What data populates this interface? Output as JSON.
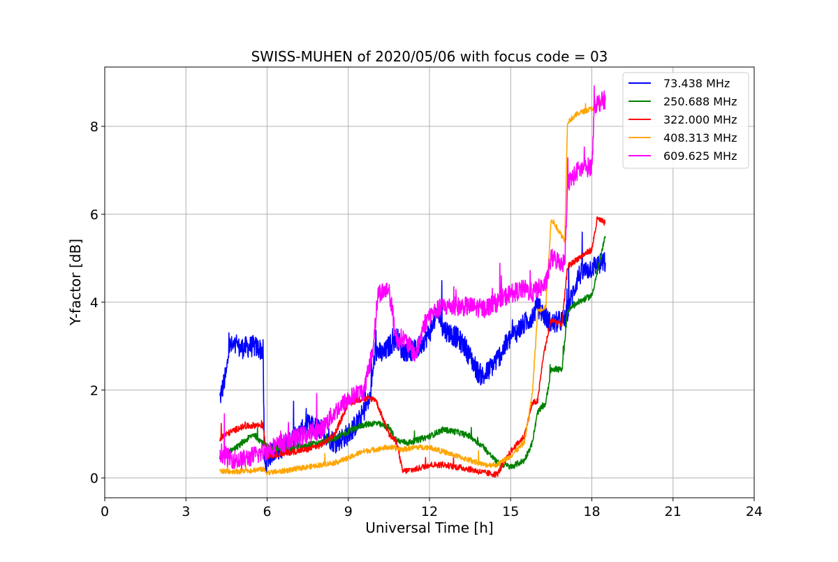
{
  "chart_data": {
    "type": "line",
    "title": "SWISS-MUHEN of 2020/05/06 with focus code = 03",
    "xlabel": "Universal Time [h]",
    "ylabel": "Y-factor [dB]",
    "xlim": [
      0,
      24
    ],
    "ylim": [
      -0.45,
      9.35
    ],
    "grid": true,
    "legend_position": "top-right",
    "x_ticks": [
      0,
      3,
      6,
      9,
      12,
      15,
      18,
      21,
      24
    ],
    "x_tick_labels": [
      "0",
      "3",
      "6",
      "9",
      "12",
      "15",
      "18",
      "21",
      "24"
    ],
    "y_ticks": [
      0,
      2,
      4,
      6,
      8
    ],
    "y_tick_labels": [
      "0",
      "2",
      "4",
      "6",
      "8"
    ],
    "series": [
      {
        "name": " 73.438 MHz",
        "color": "#0000ff",
        "noise": 0.25,
        "x": [
          4.25,
          4.5,
          4.6,
          5.0,
          5.5,
          5.85,
          5.9,
          6.2,
          6.6,
          7.0,
          7.5,
          8.0,
          8.5,
          9.0,
          9.4,
          9.8,
          10.0,
          10.3,
          10.5,
          10.8,
          11.0,
          11.5,
          12.0,
          12.3,
          12.5,
          13.0,
          13.3,
          13.8,
          14.0,
          14.5,
          15.0,
          15.5,
          15.8,
          16.0,
          16.5,
          17.0,
          17.5,
          18.0,
          18.5
        ],
        "y": [
          1.8,
          2.4,
          3.0,
          2.95,
          3.0,
          2.9,
          0.3,
          0.6,
          0.7,
          0.9,
          1.2,
          1.1,
          0.8,
          1.0,
          1.3,
          1.8,
          2.9,
          2.8,
          3.0,
          3.2,
          2.9,
          2.9,
          3.3,
          3.8,
          3.4,
          3.2,
          3.0,
          2.4,
          2.3,
          2.7,
          3.2,
          3.5,
          3.7,
          3.9,
          3.5,
          3.6,
          4.6,
          4.8,
          4.9
        ]
      },
      {
        "name": "250.688 MHz",
        "color": "#008000",
        "noise": 0.07,
        "x": [
          4.25,
          4.6,
          5.0,
          5.5,
          6.0,
          6.5,
          7.0,
          7.5,
          8.0,
          8.5,
          9.0,
          9.5,
          10.0,
          10.5,
          10.8,
          11.2,
          11.5,
          12.0,
          12.5,
          13.0,
          13.5,
          14.0,
          14.5,
          15.0,
          15.5,
          15.8,
          16.0,
          16.3,
          16.5,
          16.9,
          17.1,
          17.5,
          18.0,
          18.5
        ],
        "y": [
          0.45,
          0.6,
          0.75,
          1.0,
          0.7,
          0.65,
          0.7,
          0.75,
          0.8,
          0.9,
          1.05,
          1.2,
          1.25,
          1.15,
          0.85,
          0.8,
          0.85,
          0.95,
          1.1,
          1.05,
          0.95,
          0.7,
          0.35,
          0.25,
          0.4,
          0.8,
          1.5,
          1.7,
          2.5,
          2.45,
          3.8,
          4.0,
          4.15,
          5.5
        ]
      },
      {
        "name": "322.000 MHz",
        "color": "#ff0000",
        "noise": 0.07,
        "x": [
          4.25,
          4.5,
          5.0,
          5.5,
          5.85,
          6.0,
          6.5,
          7.0,
          7.5,
          8.0,
          8.5,
          9.0,
          9.5,
          10.0,
          10.5,
          10.8,
          11.0,
          11.5,
          12.0,
          12.5,
          13.0,
          13.5,
          14.0,
          14.5,
          15.0,
          15.5,
          15.8,
          16.0,
          16.2,
          16.5,
          16.9,
          17.1,
          17.5,
          18.0,
          18.2,
          18.5
        ],
        "y": [
          0.9,
          1.0,
          1.15,
          1.2,
          1.2,
          0.5,
          0.55,
          0.6,
          0.65,
          0.75,
          1.0,
          1.7,
          1.8,
          1.8,
          1.0,
          0.8,
          0.15,
          0.2,
          0.3,
          0.3,
          0.25,
          0.2,
          0.12,
          0.08,
          0.6,
          0.95,
          1.7,
          1.75,
          2.75,
          3.6,
          3.5,
          4.8,
          5.0,
          5.2,
          5.9,
          5.8
        ]
      },
      {
        "name": "408.313 MHz",
        "color": "#ffa500",
        "noise": 0.06,
        "x": [
          4.25,
          4.5,
          5.0,
          5.5,
          5.85,
          6.0,
          6.5,
          7.0,
          7.5,
          8.0,
          8.5,
          9.0,
          9.5,
          10.0,
          10.5,
          11.0,
          11.5,
          12.0,
          12.5,
          13.0,
          13.5,
          14.0,
          14.5,
          15.0,
          15.5,
          15.8,
          16.0,
          16.3,
          16.5,
          16.9,
          17.0,
          17.1,
          17.5,
          18.0,
          18.5
        ],
        "y": [
          0.15,
          0.15,
          0.15,
          0.18,
          0.2,
          0.12,
          0.15,
          0.2,
          0.25,
          0.3,
          0.35,
          0.45,
          0.6,
          0.65,
          0.7,
          0.65,
          0.7,
          0.7,
          0.6,
          0.5,
          0.4,
          0.3,
          0.3,
          0.5,
          0.8,
          1.9,
          3.8,
          3.9,
          5.9,
          5.5,
          5.4,
          8.1,
          8.3,
          8.4,
          8.6
        ]
      },
      {
        "name": "609.625 MHz",
        "color": "#ff00ff",
        "noise": 0.22,
        "x": [
          4.25,
          4.6,
          5.0,
          5.5,
          5.9,
          6.2,
          6.6,
          7.0,
          7.5,
          8.0,
          8.5,
          9.0,
          9.3,
          9.6,
          9.9,
          10.1,
          10.5,
          10.8,
          11.0,
          11.5,
          11.8,
          12.0,
          12.5,
          13.0,
          13.5,
          14.0,
          14.5,
          15.0,
          15.5,
          15.8,
          16.0,
          16.3,
          16.5,
          16.9,
          17.0,
          17.1,
          17.5,
          18.0,
          18.1,
          18.5
        ],
        "y": [
          0.6,
          0.45,
          0.4,
          0.5,
          0.6,
          0.7,
          0.8,
          0.9,
          1.0,
          1.1,
          1.5,
          1.8,
          1.9,
          2.0,
          2.9,
          4.2,
          4.3,
          3.1,
          3.2,
          2.8,
          3.5,
          3.7,
          3.9,
          3.9,
          3.9,
          3.85,
          4.0,
          4.2,
          4.3,
          4.2,
          4.3,
          4.4,
          5.0,
          4.9,
          4.9,
          6.7,
          7.0,
          7.1,
          8.5,
          8.6
        ]
      }
    ]
  }
}
